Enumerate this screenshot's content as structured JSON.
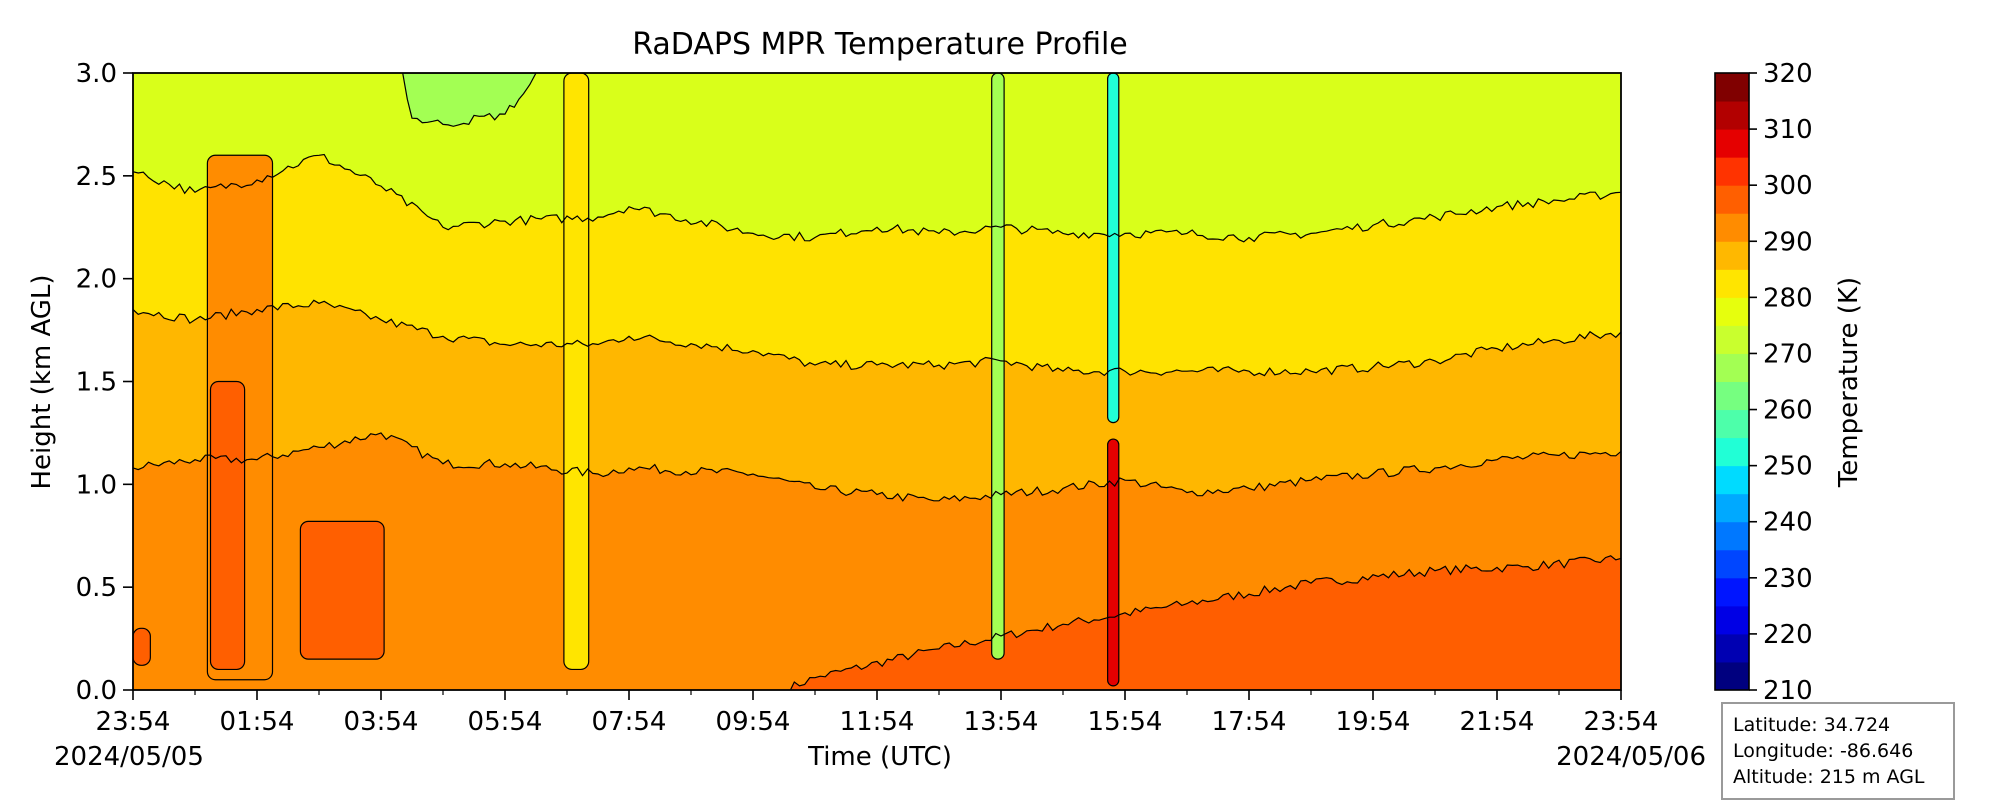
{
  "chart_data": {
    "type": "heatmap",
    "title": "RaDAPS MPR Temperature Profile",
    "xlabel": "Time (UTC)",
    "ylabel": "Height (km AGL)",
    "colorbar_label": "Temperature (K)",
    "x_ticks": [
      "23:54",
      "01:54",
      "03:54",
      "05:54",
      "07:54",
      "09:54",
      "11:54",
      "13:54",
      "15:54",
      "17:54",
      "19:54",
      "21:54",
      "23:54"
    ],
    "x_hours": [
      0,
      2,
      4,
      6,
      8,
      10,
      12,
      14,
      16,
      18,
      20,
      22,
      24
    ],
    "x_range_hours": [
      0,
      24
    ],
    "start_date": "2024/05/05",
    "end_date": "2024/05/06",
    "y_ticks": [
      "0.0",
      "0.5",
      "1.0",
      "1.5",
      "2.0",
      "2.5",
      "3.0"
    ],
    "ylim": [
      0,
      3
    ],
    "colorbar_ticks": [
      "210",
      "220",
      "230",
      "240",
      "250",
      "260",
      "270",
      "280",
      "290",
      "300",
      "310",
      "320"
    ],
    "clim": [
      210,
      320
    ],
    "colorbar_levels": [
      210,
      215,
      220,
      225,
      230,
      235,
      240,
      245,
      250,
      255,
      260,
      265,
      270,
      275,
      280,
      285,
      290,
      295,
      300,
      305,
      310,
      315,
      320
    ],
    "colormap": [
      "#00007f",
      "#0000b2",
      "#0000e5",
      "#0015ff",
      "#0046ff",
      "#0078ff",
      "#00a9ff",
      "#00dbff",
      "#21ffd6",
      "#4dffaa",
      "#76ff80",
      "#a3ff53",
      "#c9ff2e",
      "#e6ff0d",
      "#ffe500",
      "#ffb800",
      "#ff8c00",
      "#ff5f00",
      "#ff3300",
      "#e50000",
      "#b20000",
      "#800000"
    ],
    "contour_levels_k": [
      275,
      280,
      285,
      290,
      295
    ],
    "layers": [
      {
        "temp_k": 277,
        "color": "#d9ff1a"
      },
      {
        "temp_k": 282,
        "color": "#ffe300"
      },
      {
        "temp_k": 287,
        "color": "#ffb700"
      },
      {
        "temp_k": 292,
        "color": "#ff8c00"
      },
      {
        "temp_k": 297,
        "color": "#ff5e00"
      }
    ],
    "layer_boundaries": [
      {
        "level_k": 295,
        "points": [
          [
            10.5,
            0
          ],
          [
            11.0,
            0.06
          ],
          [
            13.0,
            0.2
          ],
          [
            15.0,
            0.32
          ],
          [
            17.0,
            0.42
          ],
          [
            19.0,
            0.52
          ],
          [
            21.0,
            0.58
          ],
          [
            22.5,
            0.6
          ],
          [
            24.0,
            0.64
          ]
        ]
      },
      {
        "level_k": 290,
        "points": [
          [
            0,
            1.08
          ],
          [
            1.0,
            1.12
          ],
          [
            2.0,
            1.12
          ],
          [
            3.0,
            1.18
          ],
          [
            4.0,
            1.25
          ],
          [
            5.0,
            1.1
          ],
          [
            6.0,
            1.1
          ],
          [
            7.5,
            1.05
          ],
          [
            8.0,
            1.08
          ],
          [
            10.0,
            1.05
          ],
          [
            11.0,
            0.98
          ],
          [
            12.0,
            0.95
          ],
          [
            13.0,
            0.92
          ],
          [
            14.0,
            0.95
          ],
          [
            15.0,
            0.98
          ],
          [
            16.0,
            1.02
          ],
          [
            17.0,
            0.96
          ],
          [
            18.0,
            0.98
          ],
          [
            19.0,
            1.02
          ],
          [
            20.0,
            1.05
          ],
          [
            21.0,
            1.08
          ],
          [
            22.0,
            1.12
          ],
          [
            23.0,
            1.14
          ],
          [
            24.0,
            1.16
          ]
        ]
      },
      {
        "level_k": 285,
        "points": [
          [
            0,
            1.85
          ],
          [
            1.0,
            1.8
          ],
          [
            2.0,
            1.85
          ],
          [
            3.0,
            1.88
          ],
          [
            4.0,
            1.8
          ],
          [
            5.0,
            1.72
          ],
          [
            6.0,
            1.68
          ],
          [
            7.5,
            1.68
          ],
          [
            8.0,
            1.72
          ],
          [
            10.0,
            1.65
          ],
          [
            11.0,
            1.58
          ],
          [
            12.0,
            1.58
          ],
          [
            13.0,
            1.58
          ],
          [
            14.0,
            1.6
          ],
          [
            15.0,
            1.55
          ],
          [
            16.0,
            1.55
          ],
          [
            17.0,
            1.55
          ],
          [
            18.0,
            1.55
          ],
          [
            19.0,
            1.55
          ],
          [
            20.0,
            1.57
          ],
          [
            21.0,
            1.6
          ],
          [
            22.0,
            1.66
          ],
          [
            23.0,
            1.7
          ],
          [
            24.0,
            1.74
          ]
        ]
      },
      {
        "level_k": 280,
        "points": [
          [
            0,
            2.52
          ],
          [
            1.0,
            2.42
          ],
          [
            2.0,
            2.48
          ],
          [
            3.0,
            2.6
          ],
          [
            4.0,
            2.45
          ],
          [
            5.0,
            2.25
          ],
          [
            6.0,
            2.28
          ],
          [
            7.5,
            2.3
          ],
          [
            8.0,
            2.35
          ],
          [
            10.0,
            2.22
          ],
          [
            11.0,
            2.2
          ],
          [
            12.0,
            2.25
          ],
          [
            13.0,
            2.22
          ],
          [
            14.0,
            2.25
          ],
          [
            15.0,
            2.22
          ],
          [
            16.0,
            2.22
          ],
          [
            17.0,
            2.22
          ],
          [
            18.0,
            2.2
          ],
          [
            19.0,
            2.22
          ],
          [
            20.0,
            2.26
          ],
          [
            21.0,
            2.3
          ],
          [
            22.0,
            2.35
          ],
          [
            23.0,
            2.38
          ],
          [
            24.0,
            2.42
          ]
        ]
      },
      {
        "level_k": 275,
        "points": [
          [
            4.35,
            3.0
          ],
          [
            4.5,
            2.78
          ],
          [
            5.0,
            2.75
          ],
          [
            6.0,
            2.8
          ],
          [
            6.3,
            2.9
          ],
          [
            6.5,
            3.0
          ]
        ]
      }
    ],
    "features": [
      {
        "type": "column",
        "t0": 6.95,
        "t1": 7.35,
        "z0": 0.1,
        "z1": 3.0,
        "temp_k": 282
      },
      {
        "type": "column",
        "t0": 13.85,
        "t1": 14.05,
        "z0": 0.15,
        "z1": 3.0,
        "temp_k": 267
      },
      {
        "type": "column",
        "t0": 15.72,
        "t1": 15.9,
        "z0": 1.3,
        "z1": 3.0,
        "temp_k": 252
      },
      {
        "type": "column",
        "t0": 15.72,
        "t1": 15.9,
        "z0": 0.02,
        "z1": 1.22,
        "temp_k": 306
      },
      {
        "type": "column",
        "t0": 1.2,
        "t1": 2.25,
        "z0": 0.05,
        "z1": 2.6,
        "temp_k": 292
      },
      {
        "type": "column",
        "t0": 1.25,
        "t1": 1.8,
        "z0": 0.1,
        "z1": 1.5,
        "temp_k": 297
      },
      {
        "type": "column",
        "t0": 2.7,
        "t1": 4.05,
        "z0": 0.15,
        "z1": 0.82,
        "temp_k": 297
      },
      {
        "type": "column",
        "t0": 0.0,
        "t1": 0.28,
        "z0": 0.12,
        "z1": 0.3,
        "temp_k": 297
      }
    ]
  },
  "info_box": {
    "latitude": "Latitude: 34.724",
    "longitude": "Longitude: -86.646",
    "altitude": "Altitude: 215 m AGL"
  }
}
